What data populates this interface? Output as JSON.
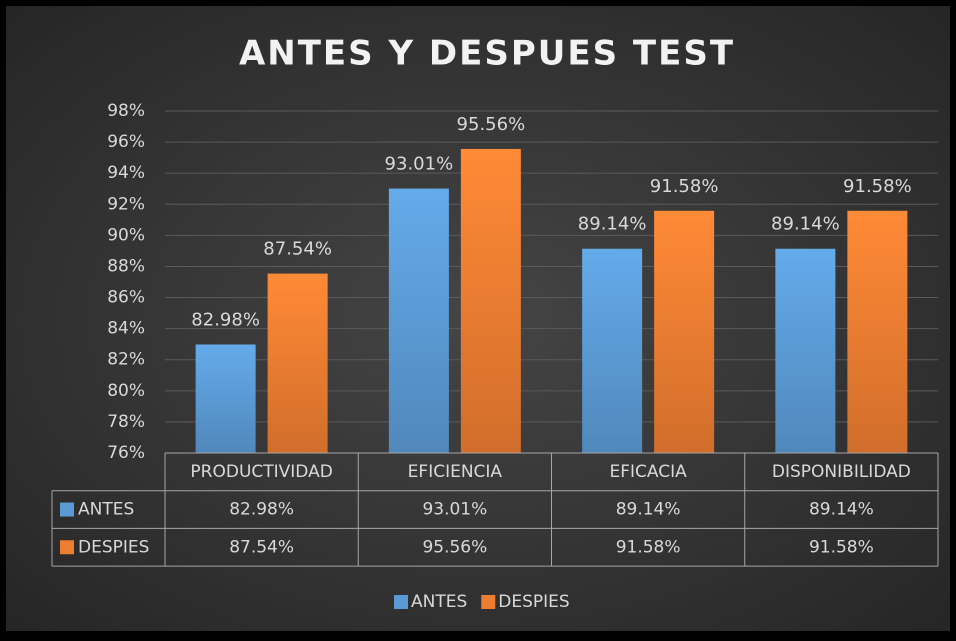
{
  "chart_data": {
    "type": "bar",
    "title": "ANTES Y DESPUES TEST",
    "categories": [
      "PRODUCTIVIDAD",
      "EFICIENCIA",
      "EFICACIA",
      "DISPONIBILIDAD"
    ],
    "series": [
      {
        "name": "ANTES",
        "color": "#5b9bd5",
        "values": [
          82.98,
          93.01,
          89.14,
          89.14
        ],
        "value_labels": [
          "82.98%",
          "93.01%",
          "89.14%",
          "89.14%"
        ]
      },
      {
        "name": "DESPIES",
        "color": "#ed7d31",
        "values": [
          87.54,
          95.56,
          91.58,
          91.58
        ],
        "value_labels": [
          "87.54%",
          "95.56%",
          "91.58%",
          "91.58%"
        ]
      }
    ],
    "ylim": [
      76,
      98
    ],
    "yticks": [
      {
        "value": 76,
        "label": "76%"
      },
      {
        "value": 78,
        "label": "78%"
      },
      {
        "value": 80,
        "label": "80%"
      },
      {
        "value": 82,
        "label": "82%"
      },
      {
        "value": 84,
        "label": "84%"
      },
      {
        "value": 86,
        "label": "86%"
      },
      {
        "value": 88,
        "label": "88%"
      },
      {
        "value": 90,
        "label": "90%"
      },
      {
        "value": 92,
        "label": "92%"
      },
      {
        "value": 94,
        "label": "94%"
      },
      {
        "value": 96,
        "label": "96%"
      },
      {
        "value": 98,
        "label": "98%"
      }
    ],
    "grid": true,
    "legend": "bottom",
    "data_table": true
  }
}
